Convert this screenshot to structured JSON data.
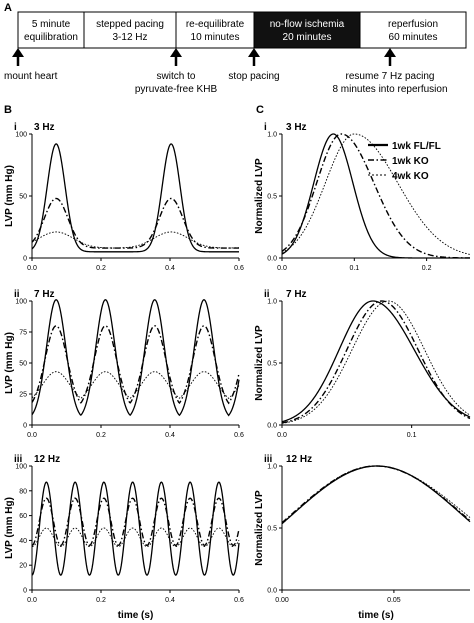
{
  "panel_labels": {
    "A": "A",
    "B": "B",
    "C": "C"
  },
  "protocol": {
    "stages": [
      {
        "line1": "5 minute",
        "line2": "equilibration"
      },
      {
        "line1": "stepped pacing",
        "line2": "3-12 Hz"
      },
      {
        "line1": "re-equilibrate",
        "line2": "10 minutes"
      },
      {
        "line1": "no-flow ischemia",
        "line2": "20 minutes"
      },
      {
        "line1": "reperfusion",
        "line2": "60 minutes"
      }
    ],
    "events": [
      {
        "line1": "mount heart",
        "line2": ""
      },
      {
        "line1": "switch to",
        "line2": "pyruvate-free KHB"
      },
      {
        "line1": "stop pacing",
        "line2": ""
      },
      {
        "line1": "resume 7 Hz pacing",
        "line2": "8 minutes into reperfusion"
      }
    ]
  },
  "legend": [
    "1wk FL/FL",
    "1wk KO",
    "4wk KO"
  ],
  "colors": {
    "stroke": "#000000",
    "ischemia_fill": "#111111",
    "ischemia_text": "#ffffff"
  },
  "chart_data": [
    {
      "id": "Bi",
      "type": "line",
      "row_label": "i",
      "title": "3 Hz",
      "xlabel": "",
      "ylabel": "LVP (mm Hg)",
      "xlim": [
        0,
        0.6
      ],
      "ylim": [
        0,
        100
      ],
      "xticks": [
        0.0,
        0.2,
        0.4,
        0.6
      ],
      "xtick_labels": [
        "0.0",
        "0.2",
        "0.4",
        "0.6"
      ],
      "yticks": [
        0,
        50,
        100
      ],
      "ytick_labels": [
        "0",
        "50",
        "100"
      ],
      "freq_hz": 3,
      "t0": 0.07,
      "series": [
        {
          "name": "1wk FL/FL",
          "style": "solid",
          "baseline": 5,
          "peak": 92,
          "width": 0.026
        },
        {
          "name": "1wk KO",
          "style": "dashdot",
          "baseline": 8,
          "peak": 48,
          "width": 0.034
        },
        {
          "name": "4wk KO",
          "style": "dotted",
          "baseline": 8,
          "peak": 21,
          "width": 0.05
        }
      ]
    },
    {
      "id": "Bii",
      "type": "line",
      "row_label": "ii",
      "title": "7 Hz",
      "xlabel": "",
      "ylabel": "LVP (mm Hg)",
      "xlim": [
        0,
        0.6
      ],
      "ylim": [
        0,
        100
      ],
      "xticks": [
        0.0,
        0.2,
        0.4,
        0.6
      ],
      "xtick_labels": [
        "0.0",
        "0.2",
        "0.4",
        "0.6"
      ],
      "yticks": [
        0,
        25,
        50,
        75,
        100
      ],
      "ytick_labels": [
        "0",
        "25",
        "50",
        "75",
        "100"
      ],
      "freq_hz": 7,
      "t0": 0.07,
      "series": [
        {
          "name": "1wk FL/FL",
          "style": "solid",
          "baseline": 4,
          "peak": 101,
          "width": 0.028
        },
        {
          "name": "1wk KO",
          "style": "dashdot",
          "baseline": 12,
          "peak": 80,
          "width": 0.032
        },
        {
          "name": "4wk KO",
          "style": "dotted",
          "baseline": 16,
          "peak": 43,
          "width": 0.04
        }
      ]
    },
    {
      "id": "Biii",
      "type": "line",
      "row_label": "iii",
      "title": "12 Hz",
      "xlabel": "time (s)",
      "ylabel": "LVP (mm Hg)",
      "xlim": [
        0,
        0.6
      ],
      "ylim": [
        0,
        100
      ],
      "xticks": [
        0.0,
        0.2,
        0.4,
        0.6
      ],
      "xtick_labels": [
        "0.0",
        "0.2",
        "0.4",
        "0.6"
      ],
      "yticks": [
        0,
        20,
        40,
        60,
        80,
        100
      ],
      "ytick_labels": [
        "0",
        "20",
        "40",
        "60",
        "80",
        "100"
      ],
      "freq_hz": 12,
      "t0": 0.0,
      "series": [
        {
          "name": "1wk FL/FL",
          "style": "solid",
          "baseline": 12,
          "peak": 87,
          "width": 0.0
        },
        {
          "name": "1wk KO",
          "style": "dashdot",
          "baseline": 36,
          "peak": 74,
          "width": 0.0
        },
        {
          "name": "4wk KO",
          "style": "dotted",
          "baseline": 35,
          "peak": 50,
          "width": 0.0
        }
      ]
    },
    {
      "id": "Ci",
      "type": "line",
      "row_label": "i",
      "title": "3 Hz",
      "xlabel": "",
      "ylabel": "Normalized LVP",
      "xlim": [
        0,
        0.26
      ],
      "ylim": [
        0,
        1.0
      ],
      "xticks": [
        0.0,
        0.1,
        0.2
      ],
      "xtick_labels": [
        "0.0",
        "0.1",
        "0.2"
      ],
      "yticks": [
        0,
        0.5,
        1.0
      ],
      "ytick_labels": [
        "0.0",
        "0.5",
        "1.0"
      ],
      "series": [
        {
          "name": "1wk FL/FL",
          "style": "solid",
          "peak_t": 0.071,
          "rise": 0.027,
          "fall": 0.027
        },
        {
          "name": "1wk KO",
          "style": "dashdot",
          "peak_t": 0.082,
          "rise": 0.034,
          "fall": 0.045
        },
        {
          "name": "4wk KO",
          "style": "dotted",
          "peak_t": 0.1,
          "rise": 0.04,
          "fall": 0.06
        }
      ]
    },
    {
      "id": "Cii",
      "type": "line",
      "row_label": "ii",
      "title": "7 Hz",
      "xlabel": "",
      "ylabel": "Normalized LVP",
      "xlim": [
        0,
        0.145
      ],
      "ylim": [
        0,
        1.0
      ],
      "xticks": [
        0.0,
        0.1
      ],
      "xtick_labels": [
        "0.0",
        "0.1"
      ],
      "yticks": [
        0,
        0.5,
        1.0
      ],
      "ytick_labels": [
        "0.0",
        "0.5",
        "1.0"
      ],
      "series": [
        {
          "name": "1wk FL/FL",
          "style": "solid",
          "peak_t": 0.07,
          "rise": 0.026,
          "fall": 0.032
        },
        {
          "name": "1wk KO",
          "style": "dashdot",
          "peak_t": 0.077,
          "rise": 0.027,
          "fall": 0.028
        },
        {
          "name": "4wk KO",
          "style": "dotted",
          "peak_t": 0.082,
          "rise": 0.028,
          "fall": 0.028
        }
      ]
    },
    {
      "id": "Ciii",
      "type": "line",
      "row_label": "iii",
      "title": "12 Hz",
      "xlabel": "time (s)",
      "ylabel": "Normalized LVP",
      "xlim": [
        0,
        0.084
      ],
      "ylim": [
        0,
        1.0
      ],
      "xticks": [
        0.0,
        0.05
      ],
      "xtick_labels": [
        "0.00",
        "0.05"
      ],
      "yticks": [
        0,
        0.5,
        1.0
      ],
      "ytick_labels": [
        "0.0",
        "0.5",
        "1.0"
      ],
      "series": [
        {
          "name": "1wk FL/FL",
          "style": "solid",
          "peak_t": 0.0425,
          "rise": 0.038,
          "fall": 0.038
        },
        {
          "name": "1wk KO",
          "style": "dashdot",
          "peak_t": 0.042,
          "rise": 0.038,
          "fall": 0.039
        },
        {
          "name": "4wk KO",
          "style": "dotted",
          "peak_t": 0.0415,
          "rise": 0.037,
          "fall": 0.041
        }
      ]
    }
  ]
}
